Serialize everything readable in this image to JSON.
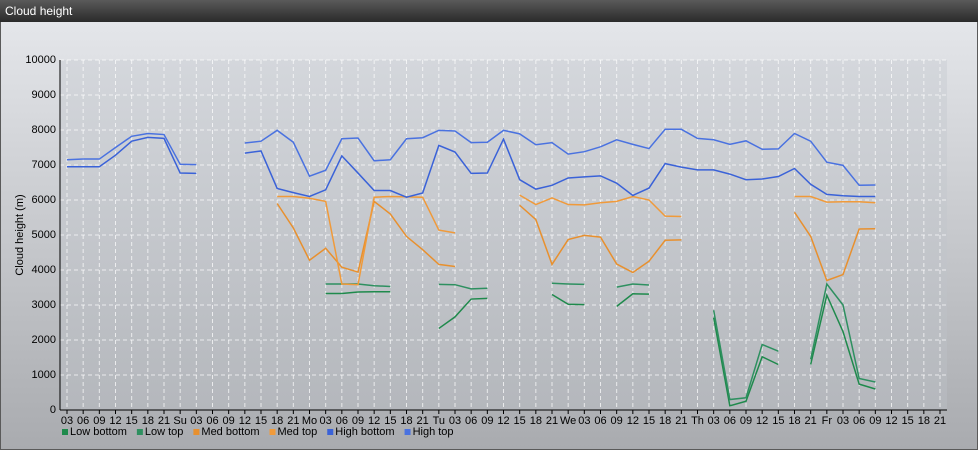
{
  "chart_data": {
    "type": "line",
    "title": "Cloud height",
    "y_label": "Cloud height (m)",
    "categories": [
      "03",
      "06",
      "09",
      "12",
      "15",
      "18",
      "21",
      "Su",
      "03",
      "06",
      "09",
      "12",
      "15",
      "18",
      "21",
      "Mo",
      "03",
      "06",
      "09",
      "12",
      "15",
      "18",
      "21",
      "Tu",
      "03",
      "06",
      "09",
      "12",
      "15",
      "18",
      "21",
      "We",
      "03",
      "06",
      "09",
      "12",
      "15",
      "18",
      "21",
      "Th",
      "03",
      "06",
      "09",
      "12",
      "15",
      "18",
      "21",
      "Fr",
      "03",
      "06",
      "09",
      "12",
      "15",
      "18",
      "21"
    ],
    "ylim": [
      0,
      10000
    ],
    "yticks": [
      0,
      1000,
      2000,
      3000,
      4000,
      5000,
      6000,
      7000,
      8000,
      9000,
      10000
    ],
    "grid": true,
    "legend": "bottom",
    "series": [
      {
        "name": "Low bottom",
        "color": "#1f8a4c",
        "values": [
          null,
          null,
          null,
          null,
          null,
          null,
          null,
          null,
          null,
          null,
          null,
          null,
          null,
          null,
          null,
          null,
          3330,
          3330,
          3370,
          3380,
          3380,
          null,
          null,
          2330,
          2660,
          3170,
          3190,
          null,
          null,
          null,
          3300,
          3020,
          3010,
          null,
          2960,
          3320,
          3310,
          null,
          null,
          null,
          2640,
          120,
          250,
          1520,
          1300,
          null,
          1300,
          3280,
          2240,
          740,
          600,
          null,
          null,
          null,
          null
        ]
      },
      {
        "name": "Low top",
        "color": "#2e9060",
        "values": [
          null,
          null,
          null,
          null,
          null,
          null,
          null,
          null,
          null,
          null,
          null,
          null,
          null,
          null,
          null,
          null,
          3600,
          3600,
          3600,
          3550,
          3530,
          null,
          null,
          3590,
          3580,
          3460,
          3480,
          null,
          null,
          null,
          3620,
          3600,
          3590,
          null,
          3510,
          3600,
          3570,
          null,
          null,
          null,
          2850,
          300,
          350,
          1870,
          1680,
          null,
          1450,
          3600,
          3000,
          900,
          800,
          null,
          null,
          null,
          null
        ]
      },
      {
        "name": "Med bottom",
        "color": "#e8902e",
        "values": [
          null,
          null,
          null,
          null,
          null,
          null,
          null,
          null,
          null,
          null,
          null,
          null,
          null,
          5900,
          5200,
          4280,
          4620,
          4080,
          3940,
          5960,
          5600,
          4960,
          4580,
          4160,
          4100,
          null,
          null,
          null,
          5850,
          5440,
          4160,
          4870,
          4990,
          4940,
          4170,
          3930,
          4250,
          4850,
          4860,
          null,
          null,
          null,
          null,
          null,
          null,
          5650,
          4960,
          3700,
          3870,
          5170,
          5180,
          null,
          null,
          null,
          null
        ]
      },
      {
        "name": "Med top",
        "color": "#f09a3a",
        "values": [
          null,
          null,
          null,
          null,
          null,
          null,
          null,
          null,
          null,
          null,
          null,
          null,
          null,
          6100,
          6100,
          6050,
          5960,
          3600,
          3580,
          6080,
          6100,
          6090,
          6080,
          5140,
          5060,
          null,
          null,
          null,
          6140,
          5870,
          6060,
          5870,
          5860,
          5920,
          5960,
          6100,
          6000,
          5540,
          5530,
          null,
          null,
          null,
          null,
          null,
          null,
          6100,
          6100,
          5940,
          5950,
          5950,
          5920,
          null,
          null,
          null,
          null
        ]
      },
      {
        "name": "High bottom",
        "color": "#3a62d8",
        "values": [
          6950,
          6950,
          6950,
          7280,
          7680,
          7790,
          7760,
          6770,
          6760,
          null,
          null,
          7340,
          7400,
          6330,
          6210,
          6100,
          6290,
          7260,
          6770,
          6270,
          6270,
          6080,
          6200,
          7560,
          7370,
          6760,
          6770,
          7740,
          6580,
          6310,
          6420,
          6630,
          6660,
          6690,
          6480,
          6130,
          6340,
          7040,
          6940,
          6860,
          6860,
          6740,
          6580,
          6600,
          6670,
          6900,
          6450,
          6160,
          6120,
          6100,
          6100,
          null,
          null,
          null,
          null
        ]
      },
      {
        "name": "High top",
        "color": "#4a72e0",
        "values": [
          7150,
          7170,
          7170,
          7500,
          7820,
          7900,
          7870,
          7020,
          7010,
          null,
          null,
          7630,
          7680,
          7990,
          7650,
          6680,
          6850,
          7750,
          7770,
          7120,
          7150,
          7750,
          7780,
          7990,
          7970,
          7640,
          7650,
          7990,
          7890,
          7580,
          7640,
          7310,
          7380,
          7520,
          7720,
          7590,
          7470,
          8020,
          8020,
          7760,
          7720,
          7590,
          7690,
          7450,
          7460,
          7900,
          7680,
          7080,
          6990,
          6420,
          6430,
          null,
          null,
          null,
          null
        ]
      }
    ]
  }
}
